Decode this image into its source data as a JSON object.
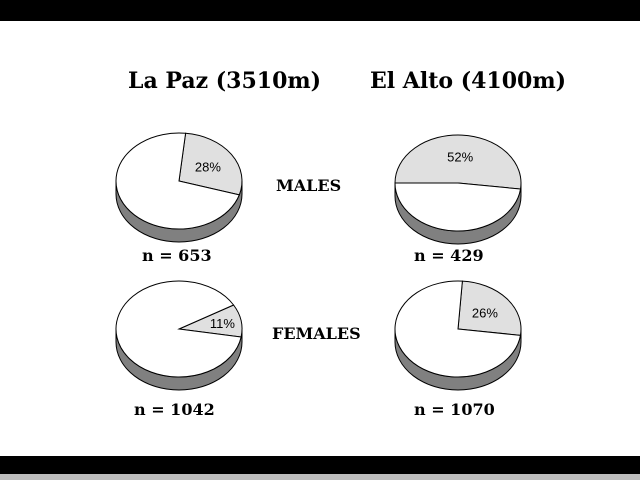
{
  "chart_data": [
    {
      "type": "pie",
      "column": "La Paz (3510m)",
      "row": "MALES",
      "values": [
        28,
        72
      ],
      "labels": [
        "28%",
        ""
      ],
      "n_label": "n = 653"
    },
    {
      "type": "pie",
      "column": "El Alto (4100m)",
      "row": "MALES",
      "values": [
        52,
        48
      ],
      "labels": [
        "52%",
        ""
      ],
      "n_label": "n = 429"
    },
    {
      "type": "pie",
      "column": "La Paz (3510m)",
      "row": "FEMALES",
      "values": [
        11,
        89
      ],
      "labels": [
        "11%",
        ""
      ],
      "n_label": "n = 1042"
    },
    {
      "type": "pie",
      "column": "El Alto (4100m)",
      "row": "FEMALES",
      "values": [
        26,
        74
      ],
      "labels": [
        "26%",
        ""
      ],
      "n_label": "n = 1070"
    }
  ],
  "headers": {
    "left": "La Paz (3510m)",
    "right": "El Alto (4100m)"
  },
  "rows": {
    "males": "MALES",
    "females": "FEMALES"
  },
  "colors": {
    "highlight_slice": "#e0e0e0",
    "other_slice": "#ffffff",
    "side": "#808080",
    "outline": "#000000"
  }
}
